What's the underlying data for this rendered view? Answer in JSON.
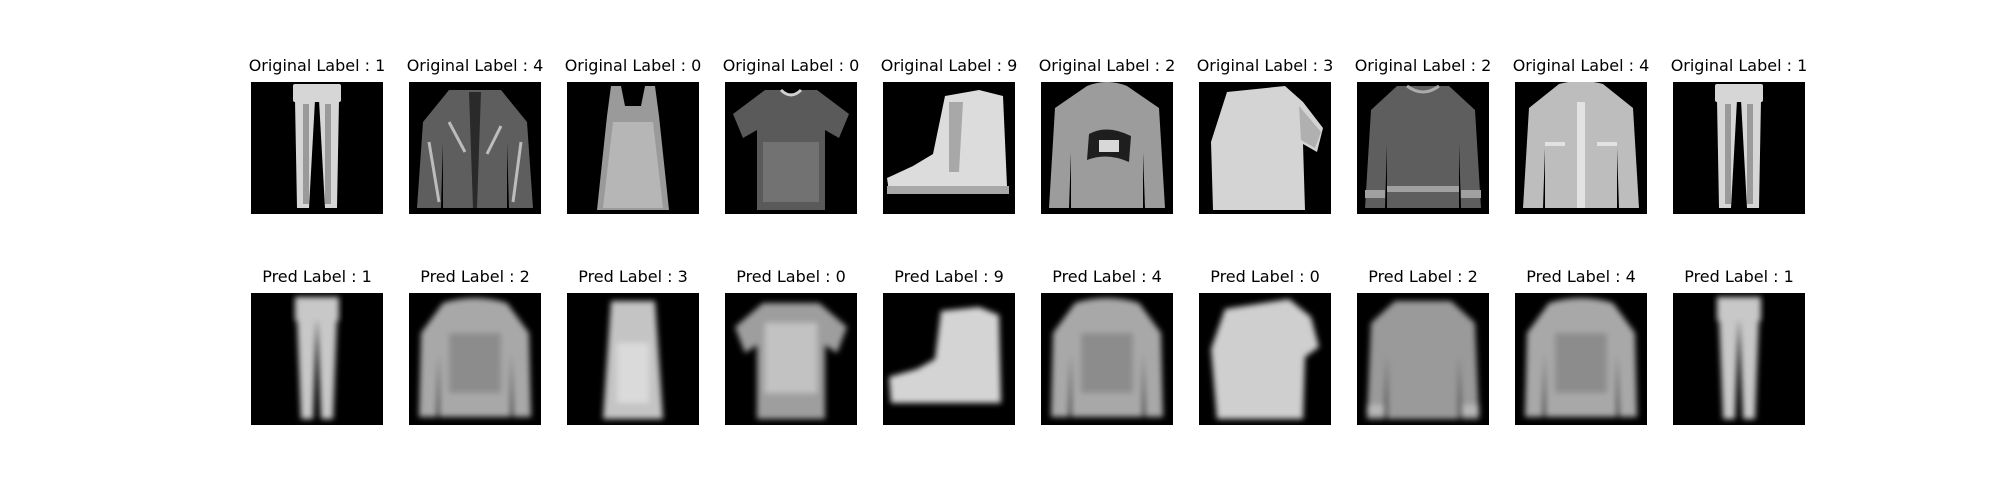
{
  "figure": {
    "rows": [
      {
        "name": "original",
        "titles": [
          "Original Label : 1",
          "Original Label : 4",
          "Original Label : 0",
          "Original Label : 0",
          "Original Label : 9",
          "Original Label : 2",
          "Original Label : 3",
          "Original Label : 2",
          "Original Label : 4",
          "Original Label : 1"
        ],
        "items": [
          "trouser",
          "jacket",
          "dress",
          "tshirt",
          "boot",
          "hoodie",
          "sweater-blob",
          "pullover",
          "jacket-light",
          "trouser"
        ]
      },
      {
        "name": "pred",
        "titles": [
          "Pred Label : 1",
          "Pred Label : 2",
          "Pred Label : 3",
          "Pred Label : 0",
          "Pred Label : 9",
          "Pred Label : 4",
          "Pred Label : 0",
          "Pred Label : 2",
          "Pred Label : 4",
          "Pred Label : 1"
        ],
        "items": [
          "trouser-blur",
          "top-blur",
          "dress-blur",
          "tshirt-blur",
          "boot-blur",
          "top-blur",
          "blob-blur",
          "pullover-blur",
          "top-blur",
          "trouser-blur"
        ]
      }
    ]
  }
}
